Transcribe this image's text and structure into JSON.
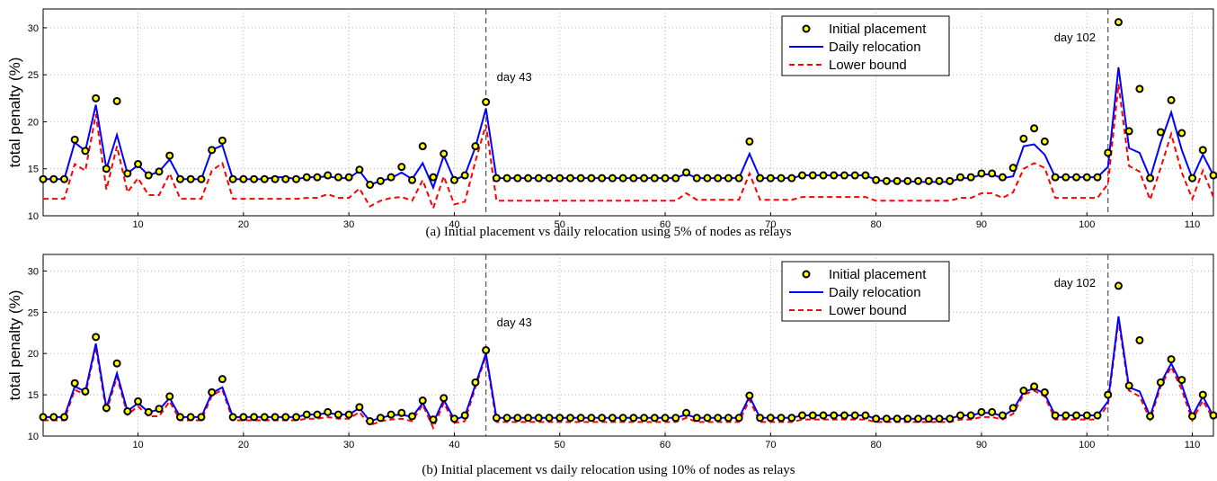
{
  "colors": {
    "initial_fill": "#ffff00",
    "initial_edge": "#000000",
    "daily": "#0000ff",
    "lower": "#ff0000",
    "vline": "#555555"
  },
  "chart_data": [
    {
      "type": "line",
      "caption": "(a)  Initial placement vs daily relocation using 5% of nodes as relays",
      "ylabel": "total penalty (%)",
      "xlim": [
        1,
        112
      ],
      "ylim": [
        10,
        32
      ],
      "xticks": [
        10,
        20,
        30,
        40,
        50,
        60,
        70,
        80,
        90,
        100,
        110
      ],
      "yticks": [
        10,
        15,
        20,
        25,
        30
      ],
      "grid": true,
      "legend_position": "top-right",
      "annotations": [
        {
          "x": 43,
          "label": "day 43"
        },
        {
          "x": 102,
          "label": "day 102"
        }
      ],
      "x_start": 1,
      "series": [
        {
          "name": "Initial placement",
          "style": "markers",
          "values": [
            13.9,
            13.9,
            13.9,
            18.1,
            16.9,
            22.5,
            15.0,
            22.2,
            14.5,
            15.5,
            14.3,
            14.7,
            16.4,
            13.9,
            13.9,
            13.9,
            17.0,
            18.0,
            13.9,
            13.9,
            13.9,
            13.9,
            13.9,
            13.9,
            13.9,
            14.1,
            14.1,
            14.3,
            14.1,
            14.1,
            14.9,
            13.3,
            13.7,
            14.1,
            15.2,
            13.8,
            17.4,
            14.1,
            16.6,
            13.8,
            14.3,
            17.4,
            22.1,
            14.0,
            14.0,
            14.0,
            14.0,
            14.0,
            14.0,
            14.0,
            14.0,
            14.0,
            14.0,
            14.0,
            14.0,
            14.0,
            14.0,
            14.0,
            14.0,
            14.0,
            14.0,
            14.6,
            14.0,
            14.0,
            14.0,
            14.0,
            14.0,
            17.9,
            14.0,
            14.0,
            14.0,
            14.0,
            14.3,
            14.3,
            14.3,
            14.3,
            14.3,
            14.3,
            14.3,
            13.8,
            13.7,
            13.7,
            13.7,
            13.7,
            13.7,
            13.7,
            13.7,
            14.1,
            14.1,
            14.5,
            14.5,
            14.1,
            15.1,
            18.2,
            19.3,
            17.9,
            14.1,
            14.1,
            14.1,
            14.1,
            14.1,
            16.7,
            30.6,
            19.0,
            23.5,
            14.0,
            18.9,
            22.3,
            18.8,
            14.0,
            17.0,
            14.3
          ]
        },
        {
          "name": "Daily relocation",
          "style": "solid",
          "values": [
            13.9,
            13.9,
            13.9,
            17.8,
            16.9,
            21.8,
            15.0,
            18.6,
            14.5,
            15.4,
            14.3,
            14.7,
            16.0,
            13.9,
            13.9,
            13.9,
            17.0,
            17.5,
            13.9,
            13.9,
            13.9,
            13.9,
            14.1,
            14.1,
            13.9,
            14.1,
            14.1,
            14.2,
            14.0,
            14.0,
            14.8,
            13.3,
            13.7,
            14.0,
            14.6,
            13.9,
            15.6,
            13.0,
            16.4,
            13.8,
            14.3,
            17.3,
            21.4,
            14.0,
            14.0,
            14.0,
            14.0,
            14.0,
            14.0,
            14.0,
            14.0,
            14.0,
            14.0,
            14.0,
            14.0,
            14.0,
            14.0,
            14.0,
            14.0,
            14.0,
            14.0,
            14.5,
            14.0,
            14.0,
            14.0,
            14.0,
            14.0,
            16.6,
            14.0,
            14.0,
            14.0,
            14.0,
            14.3,
            14.3,
            14.3,
            14.3,
            14.3,
            14.3,
            14.3,
            13.8,
            13.7,
            13.7,
            13.7,
            13.6,
            13.6,
            13.6,
            13.6,
            14.0,
            14.0,
            14.4,
            14.4,
            14.0,
            14.2,
            17.4,
            17.6,
            16.5,
            14.1,
            14.1,
            14.1,
            14.1,
            14.1,
            15.2,
            25.8,
            17.2,
            16.7,
            14.0,
            17.8,
            21.0,
            17.0,
            14.0,
            16.5,
            14.3
          ]
        },
        {
          "name": "Lower bound",
          "style": "dashed",
          "values": [
            11.8,
            11.8,
            11.8,
            15.5,
            14.8,
            20.8,
            12.8,
            17.4,
            12.5,
            14.0,
            12.2,
            12.2,
            14.5,
            11.8,
            11.8,
            11.8,
            14.8,
            15.6,
            11.8,
            11.8,
            11.8,
            11.8,
            11.8,
            11.8,
            11.8,
            11.9,
            11.9,
            12.3,
            11.9,
            11.9,
            12.9,
            11.0,
            11.6,
            11.9,
            12.0,
            11.6,
            13.8,
            10.8,
            14.2,
            11.2,
            11.5,
            15.8,
            19.7,
            11.6,
            11.6,
            11.6,
            11.6,
            11.6,
            11.6,
            11.6,
            11.6,
            11.6,
            11.6,
            11.6,
            11.6,
            11.6,
            11.6,
            11.6,
            11.6,
            11.6,
            11.6,
            12.4,
            11.7,
            11.7,
            11.7,
            11.7,
            11.7,
            14.5,
            11.7,
            11.7,
            11.7,
            11.7,
            12.0,
            12.0,
            12.0,
            12.0,
            12.0,
            12.0,
            12.0,
            11.6,
            11.6,
            11.6,
            11.6,
            11.6,
            11.6,
            11.6,
            11.6,
            11.9,
            11.9,
            12.4,
            12.4,
            11.9,
            12.5,
            15.0,
            15.6,
            15.1,
            11.9,
            11.9,
            11.9,
            11.9,
            11.9,
            13.4,
            24.0,
            15.3,
            14.7,
            11.7,
            15.1,
            18.7,
            14.6,
            11.8,
            14.8,
            12.0
          ]
        }
      ]
    },
    {
      "type": "line",
      "caption": "(b)  Initial placement vs daily relocation using 10% of nodes as relays",
      "ylabel": "total penalty (%)",
      "xlim": [
        1,
        112
      ],
      "ylim": [
        10,
        32
      ],
      "xticks": [
        10,
        20,
        30,
        40,
        50,
        60,
        70,
        80,
        90,
        100,
        110
      ],
      "yticks": [
        10,
        15,
        20,
        25,
        30
      ],
      "grid": true,
      "legend_position": "top-right",
      "annotations": [
        {
          "x": 43,
          "label": "day 43"
        },
        {
          "x": 102,
          "label": "day 102"
        }
      ],
      "x_start": 1,
      "series": [
        {
          "name": "Initial placement",
          "style": "markers",
          "values": [
            12.3,
            12.3,
            12.3,
            16.4,
            15.4,
            22.0,
            13.4,
            18.8,
            13.0,
            14.2,
            12.9,
            13.3,
            14.8,
            12.3,
            12.3,
            12.3,
            15.3,
            16.9,
            12.3,
            12.3,
            12.3,
            12.3,
            12.3,
            12.3,
            12.3,
            12.6,
            12.6,
            12.9,
            12.6,
            12.6,
            13.5,
            11.8,
            12.2,
            12.6,
            12.8,
            12.4,
            14.3,
            12.0,
            14.6,
            12.1,
            12.5,
            16.5,
            20.4,
            12.2,
            12.2,
            12.2,
            12.2,
            12.2,
            12.2,
            12.2,
            12.2,
            12.2,
            12.2,
            12.2,
            12.2,
            12.2,
            12.2,
            12.2,
            12.2,
            12.2,
            12.2,
            12.8,
            12.2,
            12.2,
            12.2,
            12.2,
            12.2,
            14.9,
            12.2,
            12.2,
            12.2,
            12.2,
            12.5,
            12.5,
            12.5,
            12.5,
            12.5,
            12.5,
            12.5,
            12.1,
            12.1,
            12.1,
            12.1,
            12.1,
            12.1,
            12.1,
            12.1,
            12.5,
            12.5,
            12.9,
            12.9,
            12.5,
            13.4,
            15.5,
            16.0,
            15.3,
            12.5,
            12.5,
            12.5,
            12.5,
            12.5,
            15.0,
            28.2,
            16.1,
            21.6,
            12.4,
            16.5,
            19.3,
            16.8,
            12.4,
            15.0,
            12.5
          ]
        },
        {
          "name": "Daily relocation",
          "style": "solid",
          "values": [
            12.3,
            12.3,
            12.3,
            16.0,
            15.4,
            21.2,
            13.4,
            17.6,
            13.0,
            14.0,
            12.9,
            13.2,
            14.6,
            12.3,
            12.3,
            12.3,
            15.2,
            15.9,
            12.3,
            12.3,
            12.3,
            12.3,
            12.3,
            12.3,
            12.3,
            12.6,
            12.6,
            12.8,
            12.6,
            12.6,
            13.4,
            11.8,
            12.2,
            12.5,
            12.6,
            12.3,
            14.0,
            11.6,
            14.4,
            12.0,
            12.4,
            16.2,
            20.0,
            12.2,
            12.2,
            12.2,
            12.2,
            12.2,
            12.2,
            12.2,
            12.2,
            12.2,
            12.2,
            12.2,
            12.2,
            12.2,
            12.2,
            12.2,
            12.2,
            12.2,
            12.2,
            12.6,
            12.2,
            12.2,
            12.2,
            12.2,
            12.2,
            14.8,
            12.2,
            12.2,
            12.2,
            12.2,
            12.5,
            12.5,
            12.5,
            12.5,
            12.5,
            12.5,
            12.5,
            12.1,
            12.1,
            12.1,
            12.1,
            12.1,
            12.1,
            12.1,
            12.1,
            12.5,
            12.5,
            12.8,
            12.8,
            12.4,
            13.2,
            15.3,
            15.8,
            15.1,
            12.5,
            12.5,
            12.5,
            12.5,
            12.5,
            14.2,
            24.5,
            15.9,
            15.4,
            12.4,
            16.4,
            18.8,
            16.2,
            12.4,
            14.8,
            12.4
          ]
        },
        {
          "name": "Lower bound",
          "style": "dashed",
          "values": [
            11.9,
            11.9,
            11.9,
            15.6,
            15.0,
            20.8,
            12.9,
            17.2,
            12.6,
            13.6,
            12.4,
            12.4,
            14.2,
            11.9,
            11.9,
            11.9,
            14.9,
            15.6,
            11.9,
            11.9,
            11.9,
            11.9,
            11.9,
            11.9,
            11.9,
            12.1,
            12.1,
            12.3,
            12.1,
            12.1,
            12.9,
            11.3,
            11.8,
            12.0,
            12.1,
            11.8,
            13.8,
            11.0,
            14.0,
            11.6,
            11.8,
            15.9,
            19.7,
            11.7,
            11.7,
            11.7,
            11.7,
            11.7,
            11.7,
            11.7,
            11.7,
            11.7,
            11.7,
            11.7,
            11.7,
            11.7,
            11.7,
            11.7,
            11.7,
            11.7,
            11.7,
            12.2,
            11.7,
            11.7,
            11.7,
            11.7,
            11.7,
            14.4,
            11.7,
            11.7,
            11.7,
            11.7,
            12.0,
            12.0,
            12.0,
            12.0,
            12.0,
            12.0,
            12.0,
            11.7,
            11.7,
            11.7,
            11.7,
            11.7,
            11.7,
            11.7,
            11.7,
            12.0,
            12.0,
            12.3,
            12.3,
            12.0,
            12.7,
            15.0,
            15.5,
            14.8,
            12.0,
            12.0,
            12.0,
            12.0,
            12.0,
            13.8,
            24.0,
            15.5,
            14.8,
            12.0,
            16.0,
            18.4,
            15.6,
            11.9,
            14.3,
            12.0
          ]
        }
      ]
    }
  ]
}
